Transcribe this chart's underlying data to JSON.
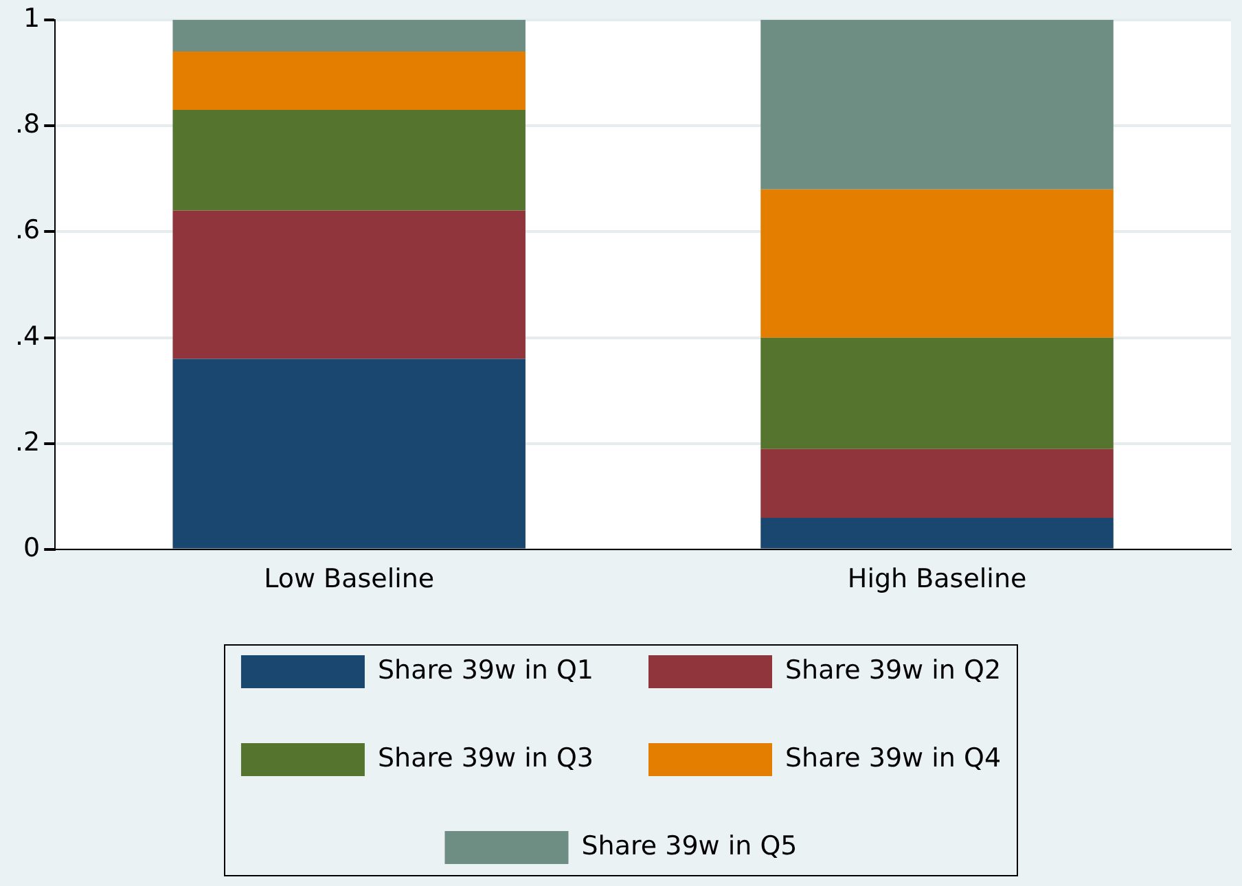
{
  "chart_data": {
    "type": "bar",
    "stacked": true,
    "categories": [
      "Low Baseline",
      "High Baseline"
    ],
    "series": [
      {
        "name": "Share 39w in Q1",
        "color": "#1a476f",
        "values": [
          0.36,
          0.06
        ]
      },
      {
        "name": "Share 39w in Q2",
        "color": "#90353b",
        "values": [
          0.28,
          0.13
        ]
      },
      {
        "name": "Share 39w in Q3",
        "color": "#55752f",
        "values": [
          0.19,
          0.21
        ]
      },
      {
        "name": "Share 39w in Q4",
        "color": "#e37e00",
        "values": [
          0.11,
          0.28
        ]
      },
      {
        "name": "Share 39w in Q5",
        "color": "#6e8e84",
        "values": [
          0.06,
          0.32
        ]
      }
    ],
    "ylim": [
      0,
      1
    ],
    "yticks": [
      {
        "value": 0,
        "label": "0"
      },
      {
        "value": 0.2,
        "label": ".2"
      },
      {
        "value": 0.4,
        "label": ".4"
      },
      {
        "value": 0.6,
        "label": ".6"
      },
      {
        "value": 0.8,
        "label": ".8"
      },
      {
        "value": 1,
        "label": "1"
      }
    ],
    "grid": "y",
    "legend": "bottom"
  }
}
